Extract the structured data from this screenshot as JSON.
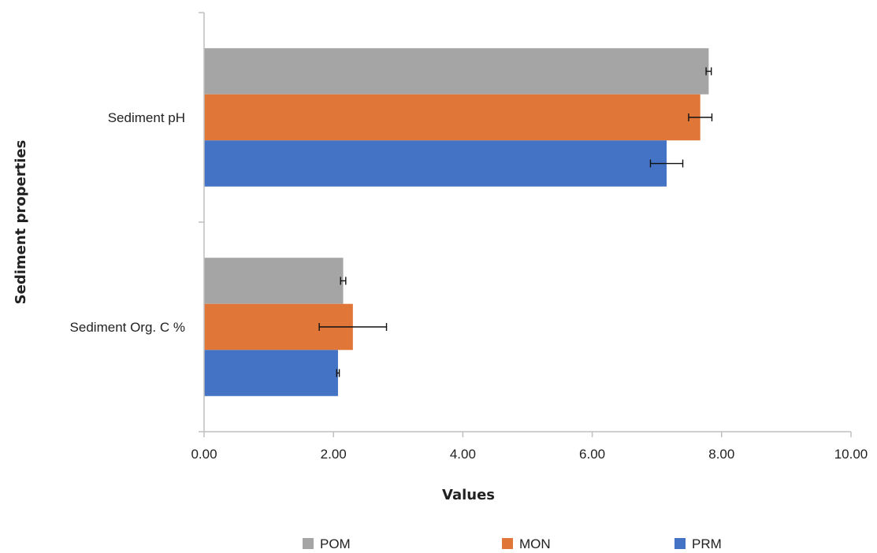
{
  "chart_data": {
    "type": "bar",
    "orientation": "horizontal",
    "categories": [
      "Sediment pH",
      "Sediment Org. C  %"
    ],
    "series": [
      {
        "name": "POM",
        "color": "#a5a5a5",
        "values": [
          7.8,
          2.15
        ],
        "errors": [
          0.04,
          0.04
        ]
      },
      {
        "name": "MON",
        "color": "#e07638",
        "values": [
          7.67,
          2.3
        ],
        "errors": [
          0.18,
          0.52
        ]
      },
      {
        "name": "PRM",
        "color": "#4472c4",
        "values": [
          7.15,
          2.07
        ],
        "errors": [
          0.25,
          0.02
        ]
      }
    ],
    "xlabel": "Values",
    "ylabel": "Sediment properties",
    "xlim": [
      0,
      10
    ],
    "x_ticks": [
      "0.00",
      "2.00",
      "4.00",
      "6.00",
      "8.00",
      "10.00"
    ],
    "grid": false,
    "legend_position": "bottom"
  }
}
